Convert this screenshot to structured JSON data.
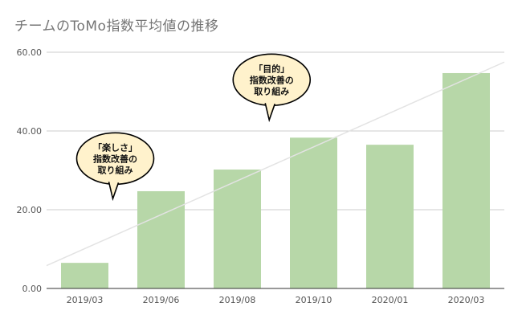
{
  "chart_data": {
    "type": "bar",
    "title": "チームのToMo指数平均値の推移",
    "xlabel": "",
    "ylabel": "",
    "categories": [
      "2019/03",
      "2019/06",
      "2019/08",
      "2019/10",
      "2020/01",
      "2020/03"
    ],
    "values": [
      6.5,
      24.7,
      30.2,
      38.3,
      36.5,
      54.7
    ],
    "ylim": [
      0,
      60
    ],
    "yticks": [
      "0.00",
      "20.00",
      "40.00",
      "60.00"
    ],
    "ytick_values": [
      0,
      20,
      40,
      60
    ],
    "grid": true,
    "trendline": {
      "start": 5.8,
      "end": 57.5
    },
    "annotations": [
      {
        "lines": [
          "「楽しさ」",
          "指数改善の",
          "取り組み"
        ],
        "category_index": 0.4,
        "y": 33
      },
      {
        "lines": [
          "「目的」",
          "指数改善の",
          "取り組み"
        ],
        "category_index": 2.45,
        "y": 53
      }
    ],
    "colors": {
      "bar": "#b7d7a8",
      "grid": "#cccccc",
      "axis": "#333333",
      "trend": "#e3e3e3",
      "callout_fill": "#fff2cc",
      "callout_stroke": "#000000"
    }
  }
}
